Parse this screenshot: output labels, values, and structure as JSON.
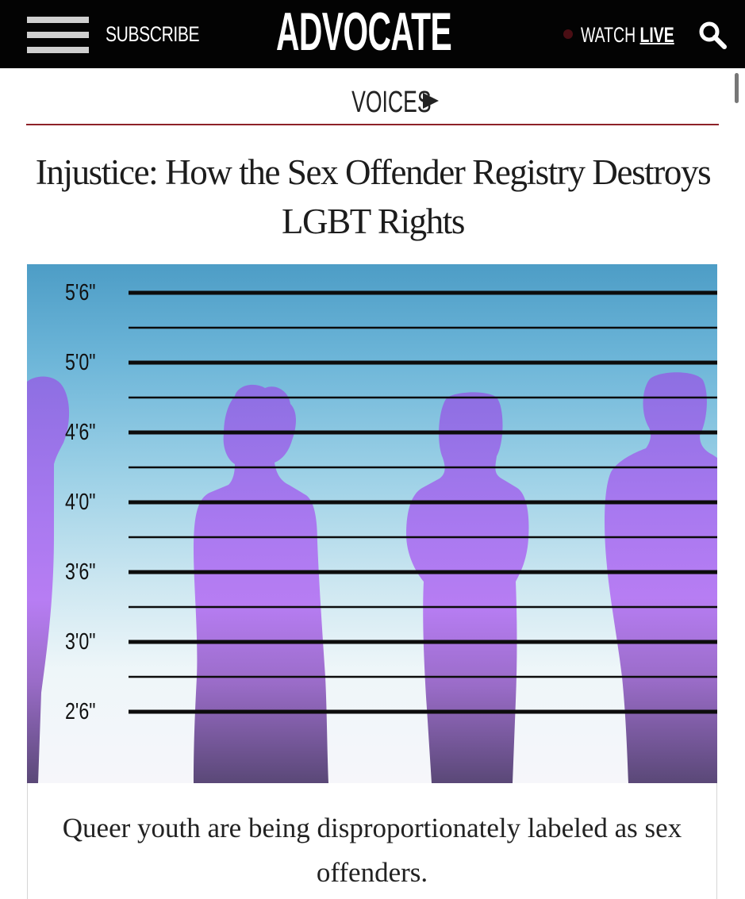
{
  "header": {
    "menu_icon": "hamburger-menu-icon",
    "subscribe_label": "SUBSCRIBE",
    "logo_text": "ADVOCATE",
    "watch_label": "WATCH",
    "live_label": "LIVE",
    "search_icon": "search-icon",
    "colors": {
      "background": "#030303",
      "text": "#ffffff",
      "accent": "#8e2228"
    }
  },
  "section": {
    "label": "VOICES",
    "arrow_icon": "play-triangle-icon"
  },
  "article": {
    "headline": "Injustice: How the Sex Offender Registry Destroys LGBT Rights",
    "caption": "Queer youth are being disproportionately labeled as sex offenders."
  },
  "image": {
    "height_marks": [
      "5'6\"",
      "5'0\"",
      "4'6\"",
      "4'0\"",
      "3'6\"",
      "3'0\"",
      "2'6\""
    ],
    "colors": {
      "sky_top": "#4d9dc6",
      "silhouette_top": "#8a6fe0",
      "silhouette_mid": "#b57cf2",
      "silhouette_bottom": "#5b4a78"
    }
  }
}
